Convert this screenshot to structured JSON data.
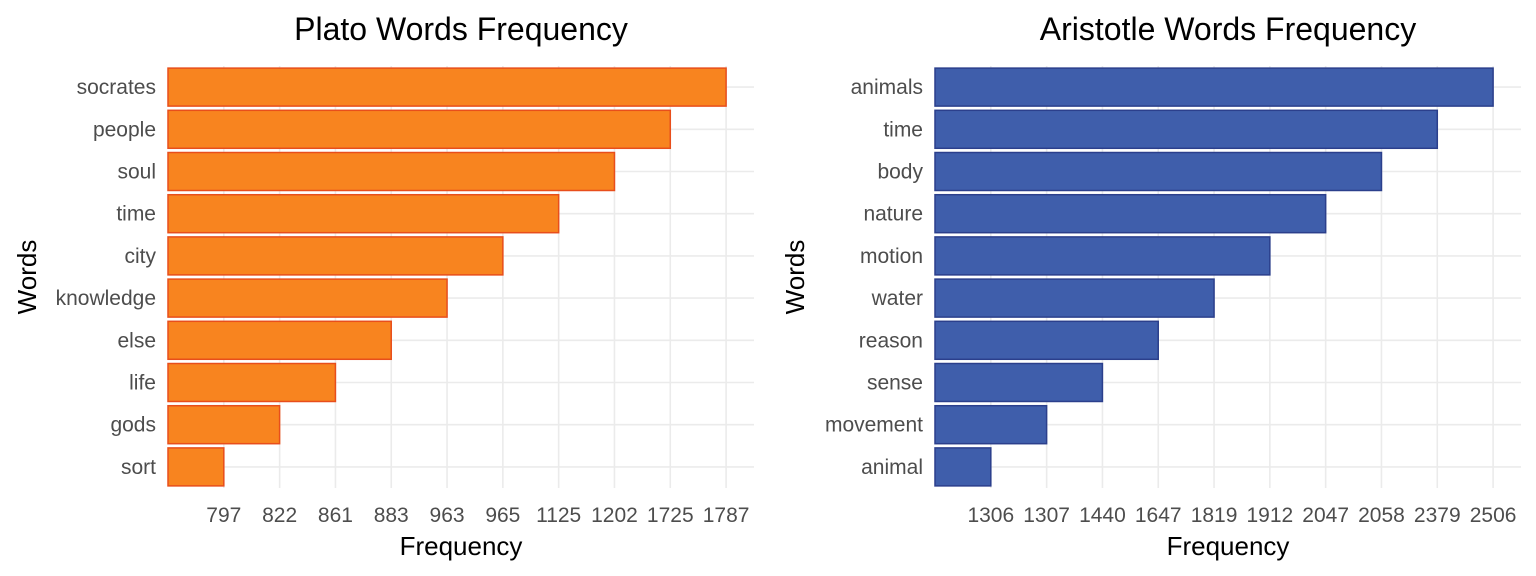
{
  "chart_data": [
    {
      "type": "bar",
      "orientation": "horizontal",
      "title": "Plato Words Frequency",
      "xlabel": "Frequency",
      "ylabel": "Words",
      "categories": [
        "socrates",
        "people",
        "soul",
        "time",
        "city",
        "knowledge",
        "else",
        "life",
        "gods",
        "sort"
      ],
      "values": [
        1787,
        1725,
        1202,
        1125,
        965,
        963,
        883,
        861,
        822,
        797
      ],
      "x_tick_labels": [
        "797",
        "822",
        "861",
        "883",
        "963",
        "965",
        "1125",
        "1202",
        "1725",
        "1787"
      ],
      "bar_color": "#F8841F",
      "bar_outline": "#E84E1B",
      "grid": true
    },
    {
      "type": "bar",
      "orientation": "horizontal",
      "title": "Aristotle Words Frequency",
      "xlabel": "Frequency",
      "ylabel": "Words",
      "categories": [
        "animals",
        "time",
        "body",
        "nature",
        "motion",
        "water",
        "reason",
        "sense",
        "movement",
        "animal"
      ],
      "values": [
        2506,
        2379,
        2058,
        2047,
        1912,
        1819,
        1647,
        1440,
        1307,
        1306
      ],
      "x_tick_labels": [
        "1306",
        "1307",
        "1440",
        "1647",
        "1819",
        "1912",
        "2047",
        "2058",
        "2379",
        "2506"
      ],
      "bar_color": "#3F5EAB",
      "bar_outline": "#2B3F8C",
      "grid": true
    }
  ]
}
